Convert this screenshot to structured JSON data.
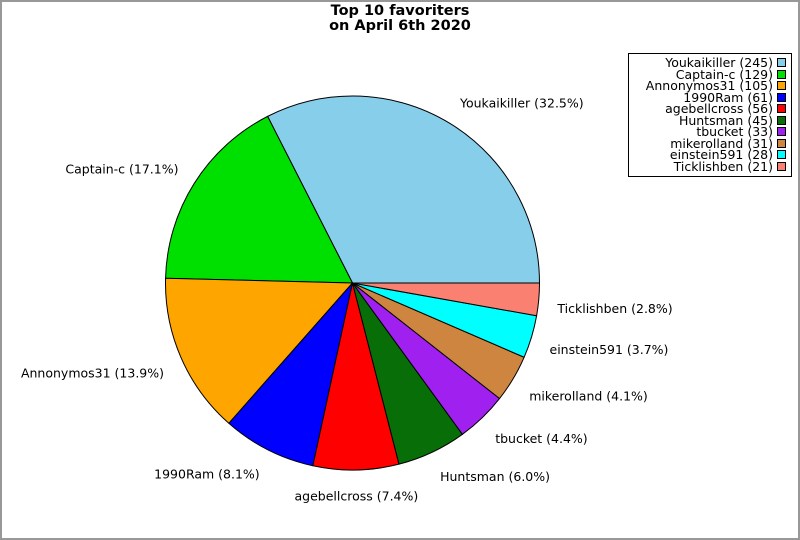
{
  "window": {
    "background": "#ffffff",
    "frame_border_color": "#989898"
  },
  "title": {
    "line1": "Top 10 favoriters",
    "line2": "on April 6th 2020"
  },
  "chart_data": {
    "type": "pie",
    "title": "Top 10 favoriters on April 6th 2020",
    "start_angle_deg": 0,
    "direction": "counterclockwise",
    "labeldistance": 1.1,
    "legend_position": "upper-right",
    "slice_edge_color": "#000000",
    "slices": [
      {
        "name": "Youkaikiller",
        "count": 245,
        "pct": 32.5,
        "color": "#87CEEB",
        "pie_label": "Youkaikiller (32.5%)",
        "legend_label": "Youkaikiller (245)"
      },
      {
        "name": "Captain-c",
        "count": 129,
        "pct": 17.1,
        "color": "#00E000",
        "pie_label": "Captain-c (17.1%)",
        "legend_label": "Captain-c (129)"
      },
      {
        "name": "Annonymos31",
        "count": 105,
        "pct": 13.9,
        "color": "#FFA500",
        "pie_label": "Annonymos31 (13.9%)",
        "legend_label": "Annonymos31 (105)"
      },
      {
        "name": "1990Ram",
        "count": 61,
        "pct": 8.1,
        "color": "#0000FF",
        "pie_label": "1990Ram (8.1%)",
        "legend_label": "1990Ram (61)"
      },
      {
        "name": "agebellcross",
        "count": 56,
        "pct": 7.4,
        "color": "#FF0000",
        "pie_label": "agebellcross (7.4%)",
        "legend_label": "agebellcross (56)"
      },
      {
        "name": "Huntsman",
        "count": 45,
        "pct": 6.0,
        "color": "#086E08",
        "pie_label": "Huntsman (6.0%)",
        "legend_label": "Huntsman (45)"
      },
      {
        "name": "tbucket",
        "count": 33,
        "pct": 4.4,
        "color": "#A020F0",
        "pie_label": "tbucket (4.4%)",
        "legend_label": "tbucket (33)"
      },
      {
        "name": "mikerolland",
        "count": 31,
        "pct": 4.1,
        "color": "#CD853F",
        "pie_label": "mikerolland (4.1%)",
        "legend_label": "mikerolland (31)"
      },
      {
        "name": "einstein591",
        "count": 28,
        "pct": 3.7,
        "color": "#00FFFF",
        "pie_label": "einstein591 (3.7%)",
        "legend_label": "einstein591 (28)"
      },
      {
        "name": "Ticklishben",
        "count": 21,
        "pct": 2.8,
        "color": "#FA8072",
        "pie_label": "Ticklishben (2.8%)",
        "legend_label": "Ticklishben (21)"
      }
    ]
  }
}
